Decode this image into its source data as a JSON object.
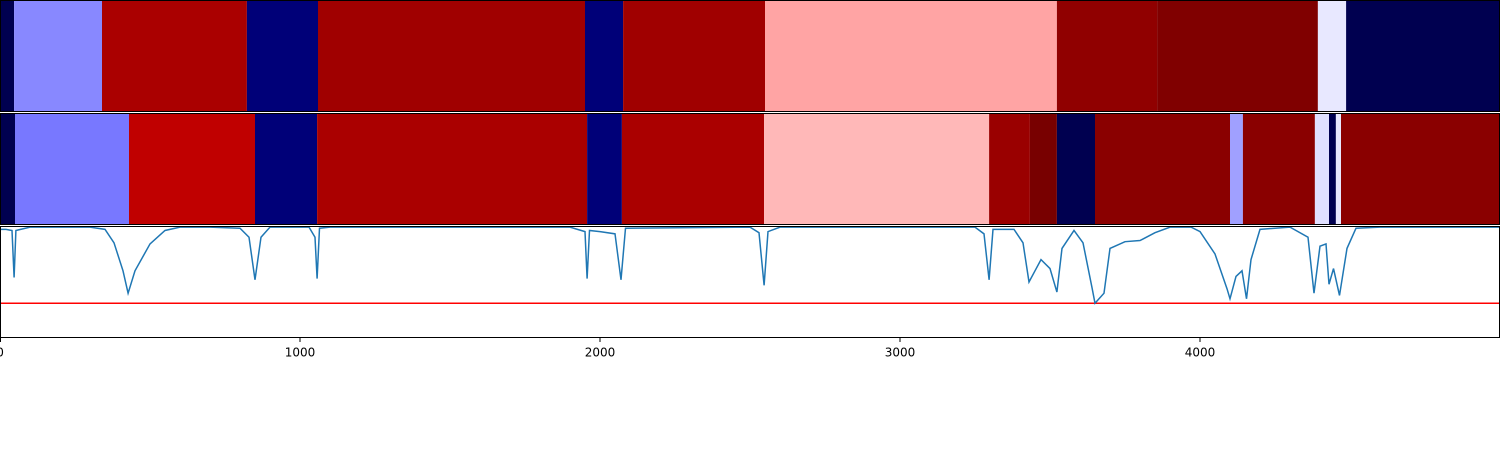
{
  "chart_data": [
    {
      "type": "segments",
      "xlim": [
        0,
        5000
      ],
      "bounds": [
        0,
        47,
        340,
        823,
        1060,
        1950,
        2077,
        2550,
        3523,
        3857,
        4393,
        4487,
        5000
      ],
      "colors": [
        "#000050",
        "#8888ff",
        "#aa0000",
        "#000078",
        "#a00000",
        "#000078",
        "#a00000",
        "#ffa4a4",
        "#900000",
        "#800000",
        "#e8e8ff",
        "#000050"
      ]
    },
    {
      "type": "segments",
      "xlim": [
        0,
        5000
      ],
      "bounds": [
        0,
        50,
        430,
        850,
        1057,
        1957,
        2073,
        2547,
        3297,
        3433,
        3523,
        3650,
        4100,
        4143,
        4383,
        4430,
        4453,
        4470,
        5000
      ],
      "colors": [
        "#000050",
        "#7878ff",
        "#c00000",
        "#000078",
        "#aa0000",
        "#000078",
        "#aa0000",
        "#ffb8b8",
        "#9a0000",
        "#780000",
        "#000050",
        "#8a0000",
        "#a0a0ff",
        "#8a0000",
        "#e0e0ff",
        "#000050",
        "#e8e8ff",
        "#8a0000"
      ]
    },
    {
      "type": "line",
      "xlim": [
        0,
        5000
      ],
      "ylim": [
        0,
        1
      ],
      "xticks": [
        0,
        1000,
        2000,
        3000,
        4000
      ],
      "threshold": 0.31,
      "threshold_color": "#ff0000",
      "series": [
        {
          "color": "#1f77b4",
          "x": [
            0,
            20,
            40,
            47,
            53,
            100,
            300,
            350,
            380,
            410,
            427,
            450,
            500,
            550,
            600,
            700,
            800,
            830,
            850,
            870,
            900,
            1030,
            1050,
            1057,
            1065,
            1100,
            1900,
            1950,
            1957,
            1965,
            2000,
            2050,
            2070,
            2085,
            2500,
            2530,
            2547,
            2560,
            2600,
            3250,
            3280,
            3297,
            3310,
            3380,
            3410,
            3430,
            3450,
            3470,
            3500,
            3523,
            3540,
            3580,
            3610,
            3640,
            3650,
            3680,
            3700,
            3750,
            3800,
            3850,
            3900,
            3970,
            4000,
            4050,
            4090,
            4100,
            4120,
            4140,
            4155,
            4170,
            4200,
            4300,
            4360,
            4380,
            4400,
            4420,
            4430,
            4445,
            4465,
            4490,
            4520,
            4600,
            5000
          ],
          "values": [
            0.97,
            0.97,
            0.96,
            0.54,
            0.96,
            0.99,
            0.99,
            0.97,
            0.85,
            0.6,
            0.4,
            0.6,
            0.84,
            0.96,
            0.99,
            0.99,
            0.98,
            0.9,
            0.52,
            0.9,
            0.99,
            0.99,
            0.9,
            0.53,
            0.98,
            0.99,
            0.99,
            0.95,
            0.53,
            0.96,
            0.95,
            0.93,
            0.52,
            0.98,
            0.99,
            0.94,
            0.47,
            0.95,
            0.99,
            0.99,
            0.93,
            0.52,
            0.97,
            0.97,
            0.85,
            0.5,
            0.6,
            0.7,
            0.62,
            0.41,
            0.8,
            0.96,
            0.85,
            0.45,
            0.31,
            0.4,
            0.8,
            0.86,
            0.87,
            0.94,
            0.99,
            0.99,
            0.95,
            0.75,
            0.44,
            0.35,
            0.55,
            0.6,
            0.35,
            0.7,
            0.97,
            0.99,
            0.9,
            0.4,
            0.82,
            0.84,
            0.48,
            0.62,
            0.38,
            0.8,
            0.98,
            0.99,
            0.99
          ]
        }
      ]
    }
  ]
}
